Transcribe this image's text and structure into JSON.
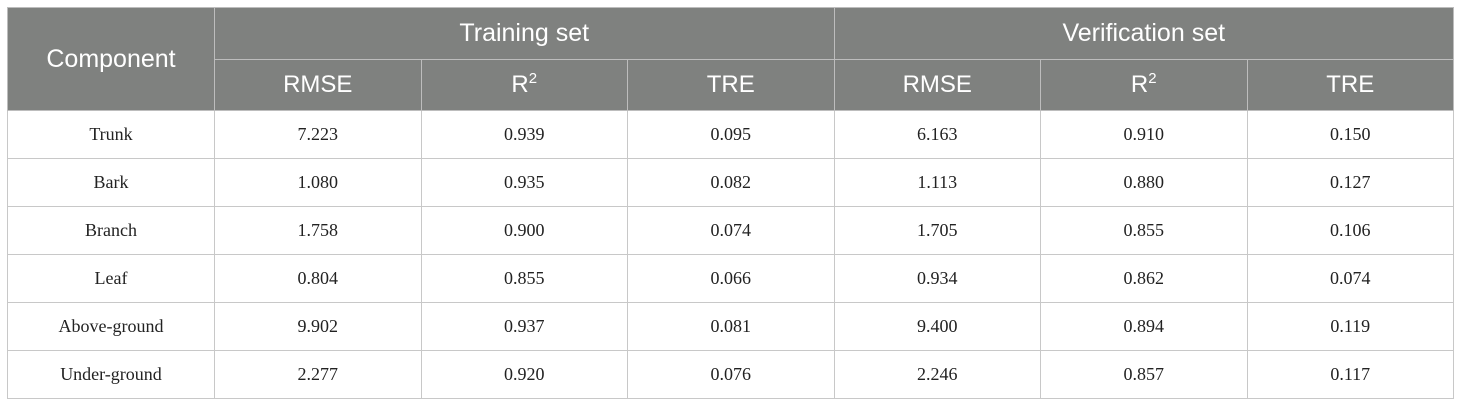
{
  "table": {
    "header": {
      "component": "Component",
      "groups": [
        "Training set",
        "Verification set"
      ],
      "metrics": [
        {
          "base": "RMSE",
          "sup": ""
        },
        {
          "base": "R",
          "sup": "2"
        },
        {
          "base": "TRE",
          "sup": ""
        },
        {
          "base": "RMSE",
          "sup": ""
        },
        {
          "base": "R",
          "sup": "2"
        },
        {
          "base": "TRE",
          "sup": ""
        }
      ]
    },
    "rows": [
      {
        "component": "Trunk",
        "values": [
          "7.223",
          "0.939",
          "0.095",
          "6.163",
          "0.910",
          "0.150"
        ]
      },
      {
        "component": "Bark",
        "values": [
          "1.080",
          "0.935",
          "0.082",
          "1.113",
          "0.880",
          "0.127"
        ]
      },
      {
        "component": "Branch",
        "values": [
          "1.758",
          "0.900",
          "0.074",
          "1.705",
          "0.855",
          "0.106"
        ]
      },
      {
        "component": "Leaf",
        "values": [
          "0.804",
          "0.855",
          "0.066",
          "0.934",
          "0.862",
          "0.074"
        ]
      },
      {
        "component": "Above-ground",
        "values": [
          "9.902",
          "0.937",
          "0.081",
          "9.400",
          "0.894",
          "0.119"
        ]
      },
      {
        "component": "Under-ground",
        "values": [
          "2.277",
          "0.920",
          "0.076",
          "2.246",
          "0.857",
          "0.117"
        ]
      }
    ]
  },
  "colors": {
    "header_bg": "#7f817f",
    "header_text": "#ffffff",
    "grid": "#c8c8c8"
  }
}
